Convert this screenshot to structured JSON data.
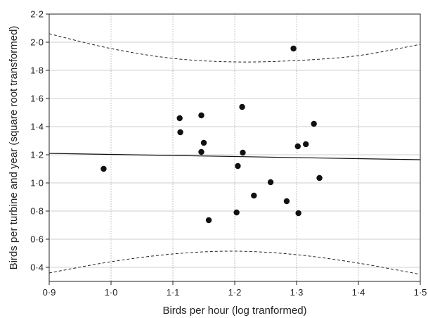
{
  "chart_data": {
    "type": "scatter",
    "title": "",
    "xlabel": "Birds per hour (log tranformed)",
    "ylabel": "Birds per turbine and year (square root transformed)",
    "xlim": [
      0.9,
      1.5
    ],
    "ylim": [
      0.3,
      2.2
    ],
    "x_ticks": [
      0.9,
      1.0,
      1.1,
      1.2,
      1.3,
      1.4,
      1.5
    ],
    "x_tick_labels": [
      "0·9",
      "1·0",
      "1·1",
      "1·2",
      "1·3",
      "1·4",
      "1·5"
    ],
    "y_ticks": [
      0.4,
      0.6,
      0.8,
      1.0,
      1.2,
      1.4,
      1.6,
      1.8,
      2.0,
      2.2
    ],
    "y_tick_labels": [
      "0·4",
      "0·6",
      "0·8",
      "1·0",
      "1·2",
      "1·4",
      "1·6",
      "1·8",
      "2·0",
      "2·2"
    ],
    "grid": {
      "x": "dotted",
      "y": "solid"
    },
    "points": [
      {
        "x": 0.988,
        "y": 1.1
      },
      {
        "x": 1.111,
        "y": 1.46
      },
      {
        "x": 1.112,
        "y": 1.36
      },
      {
        "x": 1.146,
        "y": 1.48
      },
      {
        "x": 1.146,
        "y": 1.22
      },
      {
        "x": 1.15,
        "y": 1.285
      },
      {
        "x": 1.158,
        "y": 0.735
      },
      {
        "x": 1.203,
        "y": 0.79
      },
      {
        "x": 1.205,
        "y": 1.12
      },
      {
        "x": 1.212,
        "y": 1.54
      },
      {
        "x": 1.213,
        "y": 1.215
      },
      {
        "x": 1.231,
        "y": 0.91
      },
      {
        "x": 1.258,
        "y": 1.005
      },
      {
        "x": 1.284,
        "y": 0.87
      },
      {
        "x": 1.295,
        "y": 1.955
      },
      {
        "x": 1.302,
        "y": 1.26
      },
      {
        "x": 1.303,
        "y": 0.785
      },
      {
        "x": 1.315,
        "y": 1.275
      },
      {
        "x": 1.328,
        "y": 1.42
      },
      {
        "x": 1.337,
        "y": 1.035
      }
    ],
    "regression_line": {
      "x": [
        0.9,
        1.5
      ],
      "y": [
        1.21,
        1.165
      ]
    },
    "confidence_band_upper": {
      "x": [
        0.9,
        1.0,
        1.1,
        1.2,
        1.3,
        1.4,
        1.5
      ],
      "y": [
        2.06,
        1.955,
        1.885,
        1.86,
        1.87,
        1.905,
        1.985
      ]
    },
    "confidence_band_lower": {
      "x": [
        0.9,
        1.0,
        1.1,
        1.2,
        1.3,
        1.4,
        1.5
      ],
      "y": [
        0.36,
        0.44,
        0.495,
        0.515,
        0.49,
        0.43,
        0.35
      ]
    }
  }
}
